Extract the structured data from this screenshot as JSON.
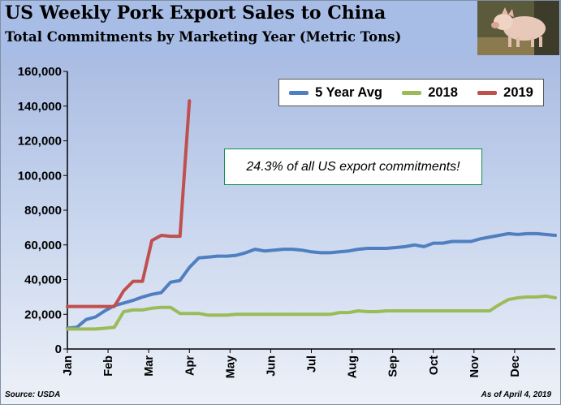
{
  "header": {
    "title": "US Weekly Pork Export Sales to China",
    "subtitle": "Total Commitments by Marketing Year (Metric Tons)"
  },
  "footer": {
    "source": "Source: USDA",
    "as_of": "As of April 4, 2019"
  },
  "annotation": "24.3% of all US export commitments!",
  "chart_data": {
    "type": "line",
    "title": "US Weekly Pork Export Sales to China",
    "subtitle": "Total Commitments by Marketing Year (Metric Tons)",
    "xlabel": "",
    "ylabel": "",
    "ylim": [
      0,
      160000
    ],
    "y_ticks": [
      0,
      20000,
      40000,
      60000,
      80000,
      100000,
      120000,
      140000,
      160000
    ],
    "y_tick_labels": [
      "0",
      "20,000",
      "40,000",
      "60,000",
      "80,000",
      "100,000",
      "120,000",
      "140,000",
      "160,000"
    ],
    "x_tick_labels": [
      "Jan",
      "Feb",
      "Mar",
      "Apr",
      "May",
      "Jun",
      "Jul",
      "Aug",
      "Sep",
      "Oct",
      "Nov",
      "Dec"
    ],
    "x_unit": "week of year",
    "xlim": [
      1,
      53
    ],
    "grid": false,
    "legend_position": "top-right",
    "series": [
      {
        "name": "5 Year Avg",
        "color": "#4f7fc0",
        "x": [
          1,
          2,
          3,
          4,
          5,
          6,
          7,
          8,
          9,
          10,
          11,
          12,
          13,
          14,
          15,
          16,
          17,
          18,
          19,
          20,
          21,
          22,
          23,
          24,
          25,
          26,
          27,
          28,
          29,
          30,
          31,
          32,
          33,
          34,
          35,
          36,
          37,
          38,
          39,
          40,
          41,
          42,
          43,
          44,
          45,
          46,
          47,
          48,
          49,
          50,
          51,
          52,
          53
        ],
        "values": [
          12000,
          12500,
          17000,
          18500,
          22000,
          25000,
          26500,
          28000,
          30000,
          31500,
          32500,
          38500,
          39500,
          47000,
          52500,
          53000,
          53500,
          53500,
          54000,
          55500,
          57500,
          56500,
          57000,
          57500,
          57500,
          57000,
          56000,
          55500,
          55500,
          56000,
          56500,
          57500,
          58000,
          58000,
          58000,
          58500,
          59000,
          60000,
          59000,
          61000,
          61000,
          62000,
          62000,
          62000,
          63500,
          64500,
          65500,
          66500,
          66000,
          66500,
          66500,
          66000,
          65500
        ]
      },
      {
        "name": "2018",
        "color": "#9bbb59",
        "x": [
          1,
          2,
          3,
          4,
          5,
          6,
          7,
          8,
          9,
          10,
          11,
          12,
          13,
          14,
          15,
          16,
          17,
          18,
          19,
          20,
          21,
          22,
          23,
          24,
          25,
          26,
          27,
          28,
          29,
          30,
          31,
          32,
          33,
          34,
          35,
          36,
          37,
          38,
          39,
          40,
          41,
          42,
          43,
          44,
          45,
          46,
          47,
          48,
          49,
          50,
          51,
          52,
          53
        ],
        "values": [
          11500,
          11500,
          11500,
          11500,
          12000,
          12500,
          21500,
          22500,
          22500,
          23500,
          24000,
          24000,
          20500,
          20500,
          20500,
          19500,
          19500,
          19500,
          20000,
          20000,
          20000,
          20000,
          20000,
          20000,
          20000,
          20000,
          20000,
          20000,
          20000,
          21000,
          21000,
          22000,
          21500,
          21500,
          22000,
          22000,
          22000,
          22000,
          22000,
          22000,
          22000,
          22000,
          22000,
          22000,
          22000,
          22000,
          25500,
          28500,
          29500,
          30000,
          30000,
          30500,
          29500
        ]
      },
      {
        "name": "2019",
        "color": "#c0504d",
        "x": [
          1,
          2,
          3,
          4,
          5,
          6,
          7,
          8,
          9,
          10,
          11,
          12,
          13,
          14
        ],
        "values": [
          24500,
          24500,
          24500,
          24500,
          24500,
          24500,
          33500,
          39000,
          39000,
          62500,
          65500,
          65000,
          65000,
          143000
        ]
      }
    ]
  }
}
